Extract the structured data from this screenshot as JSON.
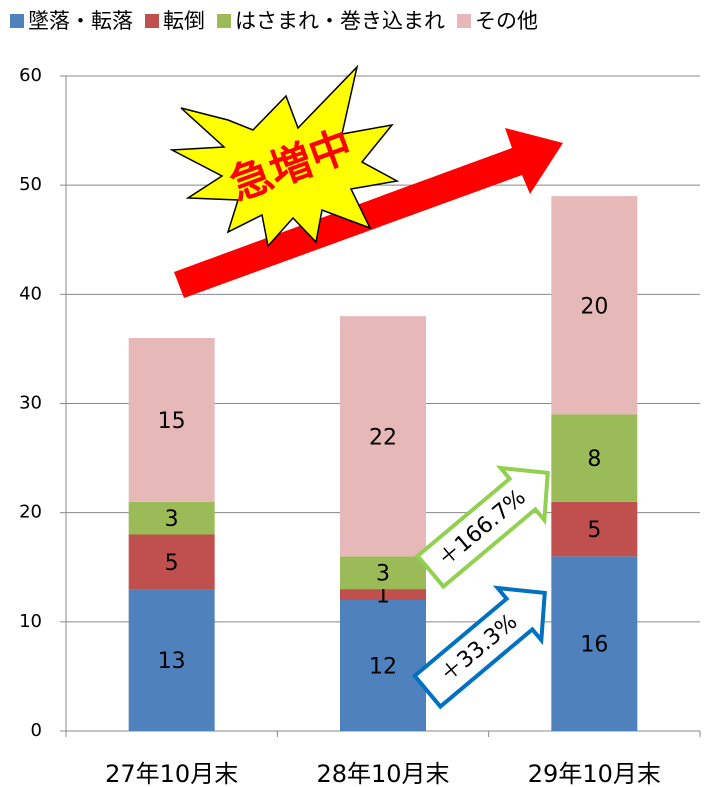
{
  "chart_data": {
    "type": "bar",
    "stacked": true,
    "categories": [
      "27年10月末",
      "28年10月末",
      "29年10月末"
    ],
    "series": [
      {
        "name": "墜落・転落",
        "color": "#4f81bd",
        "values": [
          13,
          12,
          16
        ]
      },
      {
        "name": "転倒",
        "color": "#c0504d",
        "values": [
          5,
          1,
          5
        ]
      },
      {
        "name": "はさまれ・巻き込まれ",
        "color": "#9bbb59",
        "values": [
          3,
          3,
          8
        ]
      },
      {
        "name": "その他",
        "color": "#e6b9b8",
        "values": [
          15,
          22,
          20
        ]
      }
    ],
    "ylim": [
      0,
      60
    ],
    "yticks": [
      0,
      10,
      20,
      30,
      40,
      50,
      60
    ],
    "grid": true,
    "legend": "top",
    "annotations": [
      "急増中",
      "＋166.7%",
      "＋33.3%"
    ]
  }
}
